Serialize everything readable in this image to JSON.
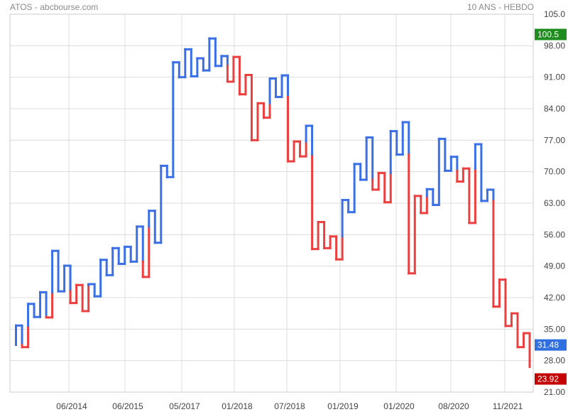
{
  "header": {
    "left": "ATOS - abcbourse.com",
    "right": "10 ANS - HEBDO"
  },
  "colors": {
    "up": "#3a6fe6",
    "down": "#ec4040",
    "grid": "#dcdcdc",
    "axis_text": "#444444",
    "last_badge": "#2f6fe0",
    "high_badge": "#1e8c1e",
    "low_badge": "#c40000"
  },
  "chart_data": {
    "type": "line",
    "style": "kagi",
    "title": "",
    "xlabel": "",
    "ylabel": "",
    "ylim": [
      21,
      105
    ],
    "y_ticks": [
      105.0,
      98.0,
      91.0,
      84.0,
      77.0,
      70.0,
      63.0,
      56.0,
      49.0,
      42.0,
      35.0,
      28.0,
      21.0
    ],
    "y_tick_labels": [
      "105.0",
      "98.00",
      "91.00",
      "84.00",
      "77.00",
      "70.00",
      "63.00",
      "56.00",
      "49.00",
      "42.00",
      "35.00",
      "28.00",
      "21.00"
    ],
    "x_tick_labels": [
      "06/2014",
      "06/2015",
      "05/2017",
      "01/2018",
      "07/2018",
      "01/2019",
      "01/2020",
      "08/2020",
      "11/2021"
    ],
    "grid": true,
    "kagi_turning_points": [
      31.5,
      35.8,
      31.0,
      40.6,
      37.7,
      43.2,
      37.6,
      52.4,
      43.4,
      49.1,
      40.8,
      44.8,
      39.0,
      45.0,
      42.3,
      50.4,
      47.0,
      53.0,
      49.5,
      53.3,
      50.0,
      57.8,
      46.6,
      61.3,
      54.2,
      71.3,
      68.8,
      94.3,
      91.0,
      97.2,
      91.2,
      95.2,
      92.5,
      99.6,
      93.5,
      95.7,
      90.0,
      95.5,
      87.2,
      91.5,
      77.0,
      85.2,
      82.0,
      90.7,
      86.6,
      91.4,
      72.3,
      76.7,
      73.4,
      80.2,
      52.8,
      58.8,
      53.0,
      55.6,
      50.5,
      63.7,
      61.0,
      71.7,
      68.2,
      77.6,
      66.0,
      69.7,
      63.2,
      79.0,
      73.8,
      81.0,
      47.4,
      64.6,
      60.8,
      66.1,
      62.6,
      77.3,
      70.2,
      73.3,
      67.8,
      70.7,
      58.6,
      76.1,
      63.5,
      66.0,
      40.0,
      46.0,
      35.7,
      38.5,
      31.0,
      34.1,
      26.6
    ],
    "badges": {
      "high": "100.5",
      "last": "31.48",
      "low": "23.92"
    }
  }
}
